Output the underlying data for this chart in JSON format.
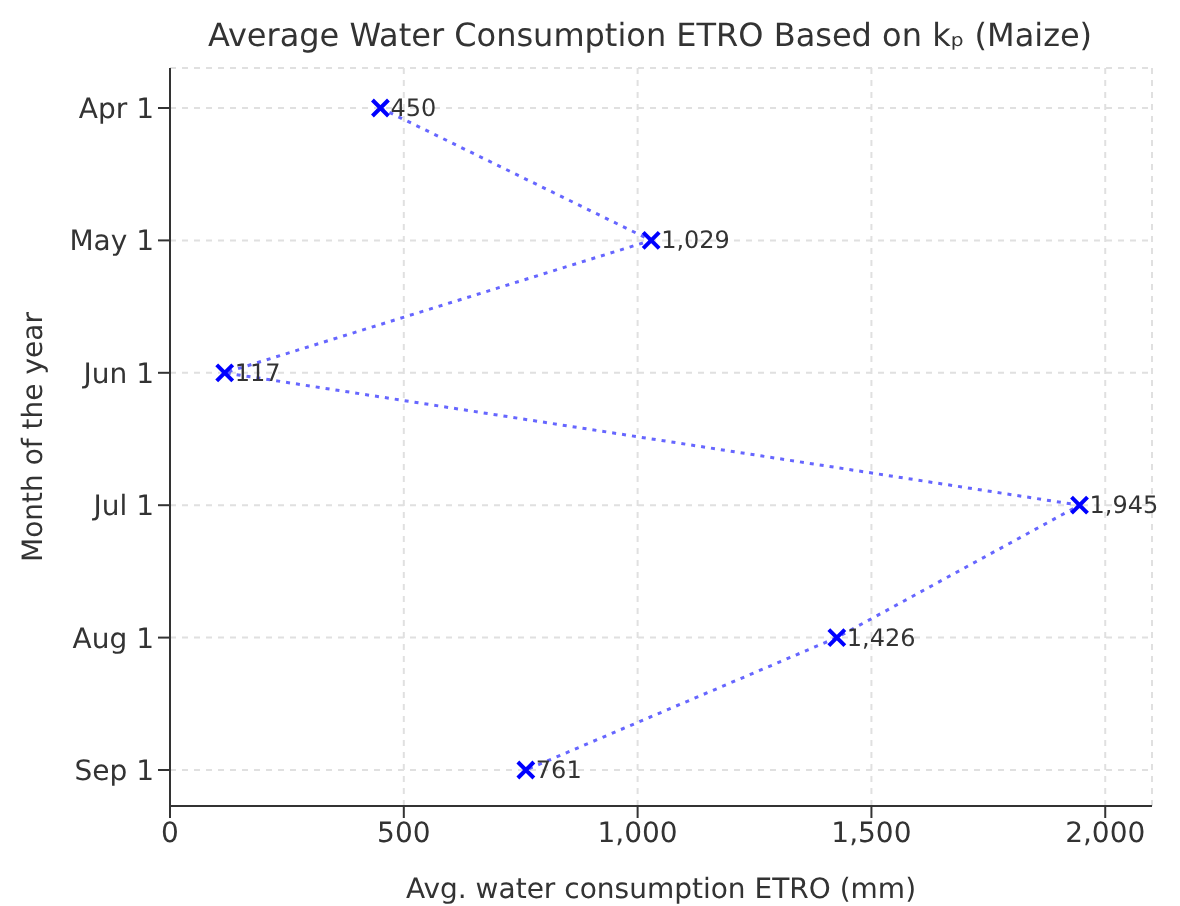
{
  "chart_data": {
    "type": "line",
    "orientation": "horizontal",
    "title": "Average Water Consumption ETRO Based on kₚ (Maize)",
    "xlabel": "Avg. water consumption ETRO (mm)",
    "ylabel": "Month of the year",
    "categories": [
      "Apr 1",
      "May 1",
      "Jun 1",
      "Jul 1",
      "Aug 1",
      "Sep 1"
    ],
    "series": [
      {
        "color": "#0000ff",
        "values": [
          450,
          1029,
          117,
          1945,
          1426,
          761
        ],
        "value_labels": [
          "450",
          "1,029",
          "117",
          "1,945",
          "1,426",
          "761"
        ]
      }
    ],
    "xlim": [
      0,
      2100
    ],
    "xticks": [
      {
        "value": 0,
        "label": "0"
      },
      {
        "value": 500,
        "label": "500"
      },
      {
        "value": 1000,
        "label": "1,000"
      },
      {
        "value": 1500,
        "label": "1,500"
      },
      {
        "value": 2000,
        "label": "2,000"
      }
    ],
    "grid": true,
    "marker": "cross",
    "line_style": "dotted"
  }
}
